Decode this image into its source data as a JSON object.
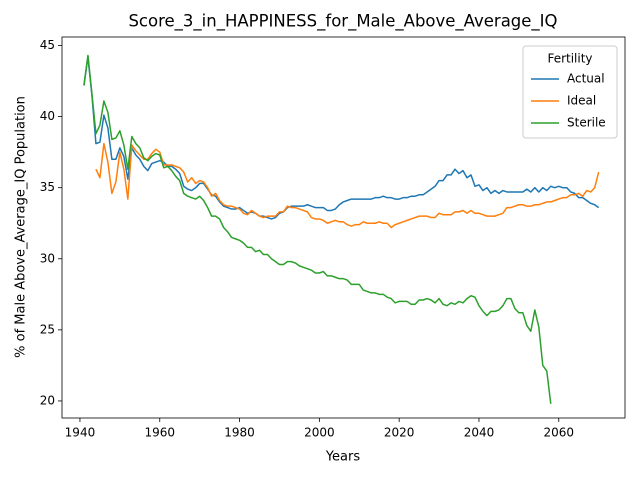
{
  "chart_data": {
    "type": "line",
    "title": "Score_3_in_HAPPINESS_for_Male_Above_Average_IQ",
    "xlabel": "Years",
    "ylabel": "% of Male Above_Average_IQ Population",
    "legend_title": "Fertility",
    "legend": "upper right",
    "x": [
      1941,
      1942,
      1943,
      1944,
      1945,
      1946,
      1947,
      1948,
      1949,
      1950,
      1951,
      1952,
      1953,
      1954,
      1955,
      1956,
      1957,
      1958,
      1959,
      1960,
      1961,
      1962,
      1963,
      1964,
      1965,
      1966,
      1967,
      1968,
      1969,
      1970,
      1971,
      1972,
      1973,
      1974,
      1975,
      1976,
      1977,
      1978,
      1979,
      1980,
      1981,
      1982,
      1983,
      1984,
      1985,
      1986,
      1987,
      1988,
      1989,
      1990,
      1991,
      1992,
      1993,
      1994,
      1995,
      1996,
      1997,
      1998,
      1999,
      2000,
      2001,
      2002,
      2003,
      2004,
      2005,
      2006,
      2007,
      2008,
      2009,
      2010,
      2011,
      2012,
      2013,
      2014,
      2015,
      2016,
      2017,
      2018,
      2019,
      2020,
      2021,
      2022,
      2023,
      2024,
      2025,
      2026,
      2027,
      2028,
      2029,
      2030,
      2031,
      2032,
      2033,
      2034,
      2035,
      2036,
      2037,
      2038,
      2039,
      2040,
      2041,
      2042,
      2043,
      2044,
      2045,
      2046,
      2047,
      2048,
      2049,
      2050,
      2051,
      2052,
      2053,
      2054,
      2055,
      2056,
      2057,
      2058,
      2059,
      2060,
      2061,
      2062,
      2063,
      2064,
      2065,
      2066,
      2067,
      2068,
      2069,
      2070
    ],
    "series": [
      {
        "name": "Actual",
        "color": "#1f77b4",
        "values": [
          42.2,
          44.2,
          41.5,
          38.1,
          38.2,
          40.1,
          39.2,
          37.0,
          37.0,
          37.8,
          37.2,
          35.6,
          37.8,
          37.3,
          37.0,
          36.5,
          36.2,
          36.7,
          36.8,
          36.9,
          36.8,
          36.5,
          36.5,
          36.3,
          36.0,
          35.1,
          34.9,
          34.8,
          35.0,
          35.3,
          35.3,
          34.9,
          34.5,
          34.4,
          34.0,
          33.7,
          33.6,
          33.5,
          33.5,
          33.6,
          33.4,
          33.2,
          33.3,
          33.2,
          33.0,
          33.0,
          32.9,
          32.8,
          32.9,
          33.2,
          33.3,
          33.6,
          33.7,
          33.7,
          33.7,
          33.7,
          33.8,
          33.7,
          33.6,
          33.6,
          33.6,
          33.4,
          33.4,
          33.5,
          33.8,
          34.0,
          34.1,
          34.2,
          34.2,
          34.2,
          34.2,
          34.2,
          34.2,
          34.3,
          34.3,
          34.4,
          34.3,
          34.3,
          34.2,
          34.2,
          34.3,
          34.3,
          34.4,
          34.4,
          34.5,
          34.5,
          34.7,
          34.9,
          35.1,
          35.5,
          35.5,
          35.9,
          35.9,
          36.3,
          36.0,
          36.2,
          35.7,
          35.9,
          35.1,
          35.2,
          34.8,
          35.0,
          34.6,
          34.8,
          34.6,
          34.8,
          34.7,
          34.7,
          34.7,
          34.7,
          34.7,
          34.9,
          34.7,
          35.0,
          34.7,
          35.0,
          34.8,
          35.1,
          35.0,
          35.1,
          35.0,
          35.0,
          34.7,
          34.6,
          34.3,
          34.3,
          34.1,
          33.9,
          33.8,
          33.6
        ]
      },
      {
        "name": "Ideal",
        "color": "#ff7f0e",
        "values": [
          null,
          null,
          null,
          36.3,
          35.7,
          38.1,
          36.8,
          34.6,
          35.4,
          37.5,
          36.3,
          34.2,
          38.0,
          37.6,
          37.3,
          37.0,
          37.0,
          37.4,
          37.7,
          37.5,
          36.6,
          36.6,
          36.6,
          36.5,
          36.4,
          36.1,
          35.4,
          35.7,
          35.3,
          35.5,
          35.4,
          35.0,
          34.4,
          34.6,
          34.1,
          33.8,
          33.7,
          33.7,
          33.6,
          33.5,
          33.2,
          33.1,
          33.4,
          33.2,
          33.0,
          32.9,
          33.0,
          33.0,
          33.0,
          33.3,
          33.3,
          33.7,
          33.6,
          33.6,
          33.5,
          33.4,
          33.3,
          32.9,
          32.8,
          32.8,
          32.7,
          32.5,
          32.6,
          32.7,
          32.6,
          32.6,
          32.4,
          32.3,
          32.4,
          32.4,
          32.6,
          32.5,
          32.5,
          32.5,
          32.6,
          32.5,
          32.5,
          32.2,
          32.4,
          32.5,
          32.6,
          32.7,
          32.8,
          32.9,
          33.0,
          33.0,
          33.0,
          32.9,
          32.9,
          33.2,
          33.1,
          33.1,
          33.1,
          33.3,
          33.3,
          33.4,
          33.2,
          33.4,
          33.2,
          33.2,
          33.1,
          33.0,
          33.0,
          33.0,
          33.1,
          33.2,
          33.6,
          33.6,
          33.7,
          33.8,
          33.8,
          33.7,
          33.7,
          33.8,
          33.8,
          33.9,
          34.0,
          34.0,
          34.1,
          34.2,
          34.3,
          34.3,
          34.5,
          34.5,
          34.6,
          34.4,
          34.8,
          34.7,
          35.0,
          36.1
        ]
      },
      {
        "name": "Sterile",
        "color": "#2ca02c",
        "values": [
          42.2,
          44.3,
          41.6,
          38.8,
          39.4,
          41.1,
          40.3,
          38.4,
          38.5,
          39.0,
          38.0,
          36.3,
          38.6,
          38.1,
          37.8,
          37.1,
          36.9,
          37.2,
          37.4,
          37.3,
          36.4,
          36.5,
          36.2,
          35.8,
          35.5,
          34.6,
          34.4,
          34.3,
          34.2,
          34.4,
          34.1,
          33.6,
          33.0,
          33.0,
          32.8,
          32.2,
          31.9,
          31.5,
          31.4,
          31.3,
          31.1,
          30.8,
          30.8,
          30.5,
          30.6,
          30.3,
          30.3,
          30.0,
          29.8,
          29.6,
          29.6,
          29.8,
          29.8,
          29.7,
          29.5,
          29.4,
          29.3,
          29.2,
          29.0,
          29.0,
          29.1,
          28.8,
          28.8,
          28.7,
          28.6,
          28.6,
          28.5,
          28.2,
          28.2,
          28.2,
          27.8,
          27.7,
          27.6,
          27.6,
          27.5,
          27.5,
          27.3,
          27.2,
          26.9,
          27.0,
          27.0,
          27.0,
          26.8,
          26.8,
          27.1,
          27.1,
          27.2,
          27.1,
          26.9,
          27.2,
          26.8,
          26.7,
          26.9,
          26.8,
          27.0,
          26.9,
          27.2,
          27.4,
          27.3,
          26.7,
          26.3,
          26.0,
          26.3,
          26.3,
          26.4,
          26.7,
          27.2,
          27.2,
          26.5,
          26.2,
          26.2,
          25.3,
          24.9,
          26.4,
          25.2,
          22.5,
          22.1,
          19.8,
          null,
          null,
          null,
          null,
          null,
          null,
          null,
          null,
          null,
          null,
          null,
          null
        ]
      }
    ],
    "xlim": [
      1935.5,
      2076.6
    ],
    "xticks": [
      1940,
      1960,
      1980,
      2000,
      2020,
      2040,
      2060
    ],
    "ylim": [
      18.8,
      45.6
    ],
    "yticks": [
      20,
      25,
      30,
      35,
      40,
      45
    ]
  }
}
